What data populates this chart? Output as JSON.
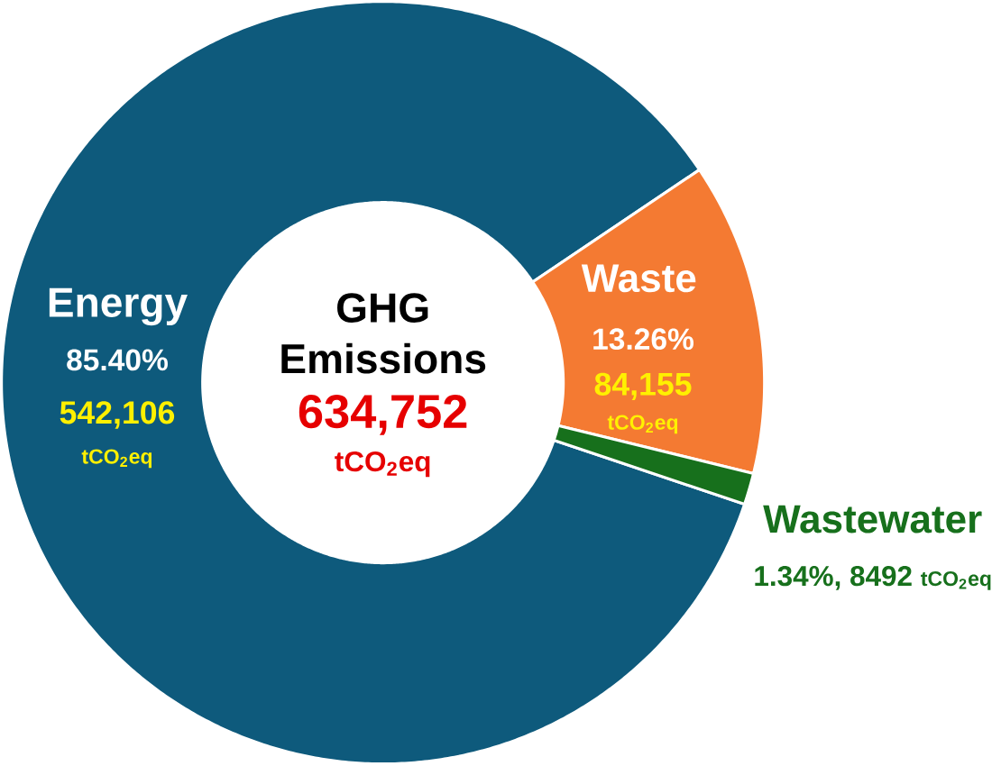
{
  "chart_data": {
    "type": "donut",
    "title": "GHG Emissions",
    "subtitle": "634,752",
    "categories": [
      "Energy",
      "Waste",
      "Wastewater"
    ],
    "values": [
      542106,
      84155,
      8492
    ],
    "colors": [
      "#0e5a7c",
      "#f47a32",
      "#17701c"
    ],
    "value_labels": [
      "542,106",
      "84,155",
      "8492"
    ],
    "annotations": [
      "85.40%",
      "13.26%",
      "1.34%,",
      "tCO$_{2}$eq",
      "tCO$_{2}$eq",
      "tCO$_{2}$eq",
      "tCO$_{2}$eq"
    ]
  }
}
